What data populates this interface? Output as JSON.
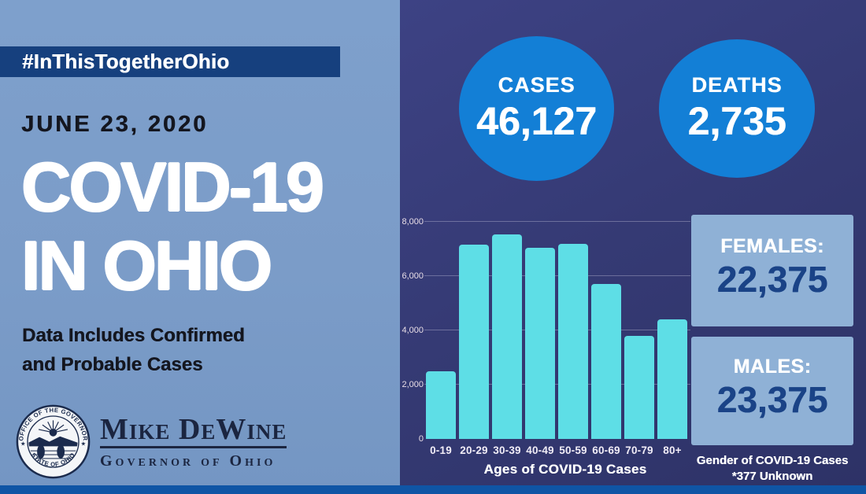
{
  "colors": {
    "left_bg": "#7b9cc8",
    "banner_bg": "#16407e",
    "right_bg_top": "#3d4284",
    "right_bg_bottom": "#2d3266",
    "circle_blue": "#137fd6",
    "bar_teal": "#5edee6",
    "box_bg": "#8fb1d6",
    "number_navy": "#1a4387",
    "dark_text": "#14161f",
    "bottom_stripe": "#0f55a5"
  },
  "left": {
    "hashtag": "#InThisTogetherOhio",
    "date": "JUNE 23, 2020",
    "title_line1": "COVID-19",
    "title_line2": "IN OHIO",
    "subtitle_line1": "Data Includes Confirmed",
    "subtitle_line2": "and Probable Cases",
    "governor_name": "Mike DeWine",
    "governor_title": "Governor of Ohio",
    "seal_text_top": "OFFICE OF THE GOVERNOR",
    "seal_text_bottom": "STATE OF OHIO"
  },
  "stats": {
    "cases_label": "CASES",
    "cases_value": "46,127",
    "deaths_label": "DEATHS",
    "deaths_value": "2,735"
  },
  "gender": {
    "females_label": "FEMALES:",
    "females_value": "22,375",
    "males_label": "MALES:",
    "males_value": "23,375",
    "caption_line1": "Gender of COVID-19 Cases",
    "caption_line2": "*377 Unknown"
  },
  "chart_data": {
    "type": "bar",
    "title": "Ages of COVID-19 Cases",
    "xlabel": "Ages of COVID-19 Cases",
    "ylabel": "",
    "categories": [
      "0-19",
      "20-29",
      "30-39",
      "40-49",
      "50-59",
      "60-69",
      "70-79",
      "80+"
    ],
    "values": [
      2500,
      7150,
      7550,
      7050,
      7200,
      5700,
      3800,
      4400
    ],
    "ylim": [
      0,
      8000
    ],
    "ytick_labels": [
      "0",
      "2,000",
      "4,000",
      "6,000",
      "8,000"
    ],
    "grid": true,
    "legend": "none",
    "bar_color": "#5edee6"
  }
}
